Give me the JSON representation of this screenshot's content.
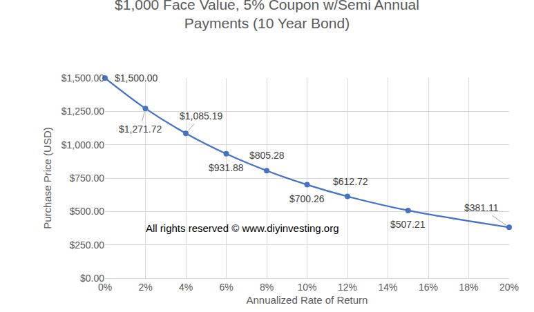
{
  "chart_data": {
    "type": "line",
    "title": "$1,000 Face Value, 5% Coupon w/Semi Annual Payments (10 Year Bond)",
    "x_label": "Annualized Rate of Return",
    "y_label": "Purchase Price (USD)",
    "x": [
      0,
      2,
      4,
      6,
      8,
      10,
      12,
      15,
      20
    ],
    "values": [
      1500.0,
      1271.72,
      1085.19,
      931.88,
      805.28,
      700.26,
      612.72,
      507.21,
      381.11
    ],
    "value_labels": [
      "$1,500.00",
      "$1,271.72",
      "$1,085.19",
      "$931.88",
      "$805.28",
      "$700.26",
      "$612.72",
      "$507.21",
      "$381.11"
    ],
    "color": "#4472c4",
    "marker": "circle",
    "line_style": "smooth",
    "data_labels": true,
    "grid": true,
    "xlim": [
      0,
      20
    ],
    "xticks": [
      {
        "value": 0,
        "label": "0%"
      },
      {
        "value": 2,
        "label": "2%"
      },
      {
        "value": 4,
        "label": "4%"
      },
      {
        "value": 6,
        "label": "6%"
      },
      {
        "value": 8,
        "label": "8%"
      },
      {
        "value": 10,
        "label": "10%"
      },
      {
        "value": 12,
        "label": "12%"
      },
      {
        "value": 14,
        "label": "14%"
      },
      {
        "value": 16,
        "label": "16%"
      },
      {
        "value": 18,
        "label": "18%"
      },
      {
        "value": 20,
        "label": "20%"
      }
    ],
    "ylim": [
      0,
      1500
    ],
    "yticks": [
      {
        "value": 0,
        "label": "$0.00"
      },
      {
        "value": 250,
        "label": "$250.00"
      },
      {
        "value": 500,
        "label": "$500.00"
      },
      {
        "value": 750,
        "label": "$750.00"
      },
      {
        "value": 1000,
        "label": "$1,000.00"
      },
      {
        "value": 1250,
        "label": "$1,250.00"
      },
      {
        "value": 1500,
        "label": "$1,500.00"
      }
    ],
    "annotations": [
      "All rights reserved © www.diyinvesting.org"
    ]
  }
}
